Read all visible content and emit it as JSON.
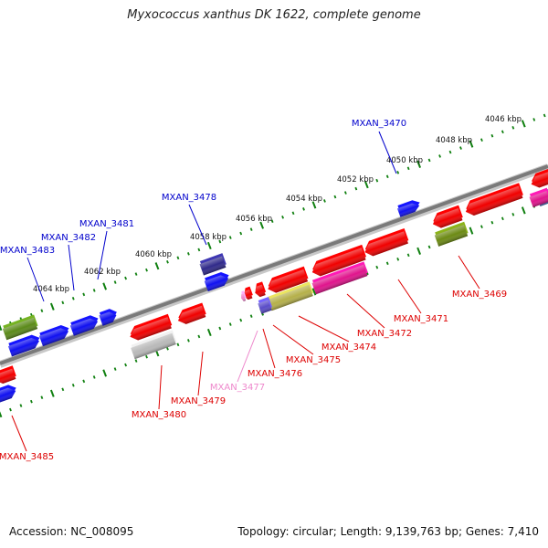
{
  "title": "Myxococcus xanthus DK 1622, complete genome",
  "footer": {
    "accession": "Accession: NC_008095",
    "summary": "Topology: circular; Length: 9,139,763 bp; Genes: 7,410"
  },
  "colors": {
    "forward": "#1010f0",
    "reverse": "#f00000",
    "backbone": "#808080",
    "tick": "#108010"
  },
  "axis": {
    "kbp_ticks": [
      "4046 kbp",
      "4048 kbp",
      "4050 kbp",
      "4052 kbp",
      "4054 kbp",
      "4056 kbp",
      "4058 kbp",
      "4060 kbp",
      "4062 kbp",
      "4064 kbp"
    ]
  },
  "genes": [
    {
      "id": "g3470",
      "label": "MXAN_3470",
      "strand": "forward",
      "color": "#1010f0"
    },
    {
      "id": "g3478",
      "label": "MXAN_3478",
      "strand": "forward",
      "color": "#302a8a"
    },
    {
      "id": "g3481",
      "label": "MXAN_3481",
      "strand": "forward",
      "color": "#1010f0"
    },
    {
      "id": "g3482",
      "label": "MXAN_3482",
      "strand": "forward",
      "color": "#1010f0"
    },
    {
      "id": "g3483",
      "label": "MXAN_3483",
      "strand": "forward",
      "color": "#1010f0"
    },
    {
      "id": "g3469",
      "label": "MXAN_3469",
      "strand": "reverse",
      "color": "#f00000"
    },
    {
      "id": "g3471",
      "label": "MXAN_3471",
      "strand": "reverse",
      "color": "#f00000"
    },
    {
      "id": "g3472",
      "label": "MXAN_3472",
      "strand": "reverse",
      "color": "#e0148c"
    },
    {
      "id": "g3474",
      "label": "MXAN_3474",
      "strand": "reverse",
      "color": "#f00000"
    },
    {
      "id": "g3475",
      "label": "MXAN_3475",
      "strand": "reverse",
      "color": "#f00000"
    },
    {
      "id": "g3476",
      "label": "MXAN_3476",
      "strand": "reverse",
      "color": "#f00000"
    },
    {
      "id": "g3477",
      "label": "MXAN_3477",
      "strand": "reverse",
      "color": "#ee88cc"
    },
    {
      "id": "g3479",
      "label": "MXAN_3479",
      "strand": "reverse",
      "color": "#f00000"
    },
    {
      "id": "g3480",
      "label": "MXAN_3480",
      "strand": "reverse",
      "color": "#f00000"
    },
    {
      "id": "g3485",
      "label": "MXAN_3485",
      "strand": "reverse",
      "color": "#f00000"
    }
  ]
}
